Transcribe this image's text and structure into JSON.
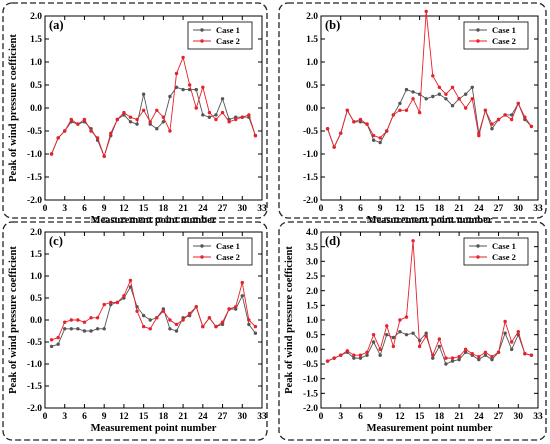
{
  "chart_data": [
    {
      "type": "line",
      "panel_label": "(a)",
      "xlabel": "Measurement point number",
      "ylabel": "Peak of wind pressure coefficient",
      "xlim": [
        0,
        33
      ],
      "ylim": [
        -2.0,
        2.0
      ],
      "xticks": [
        0,
        3,
        6,
        9,
        12,
        15,
        18,
        21,
        24,
        27,
        30,
        33
      ],
      "yticks": [
        -2.0,
        -1.5,
        -1.0,
        -0.5,
        0.0,
        0.5,
        1.0,
        1.5,
        2.0
      ],
      "legend": "top-right",
      "x": [
        1,
        2,
        3,
        4,
        5,
        6,
        7,
        8,
        9,
        10,
        11,
        12,
        13,
        14,
        15,
        16,
        17,
        18,
        19,
        20,
        21,
        22,
        23,
        24,
        25,
        26,
        27,
        28,
        29,
        30,
        31,
        32
      ],
      "series": [
        {
          "name": "Case 1",
          "color": "#555555",
          "values": [
            -1.0,
            -0.65,
            -0.5,
            -0.3,
            -0.35,
            -0.3,
            -0.45,
            -0.7,
            -1.05,
            -0.6,
            -0.25,
            -0.15,
            -0.3,
            -0.35,
            0.3,
            -0.35,
            -0.45,
            -0.3,
            0.25,
            0.45,
            0.4,
            0.4,
            0.4,
            -0.15,
            -0.2,
            -0.15,
            0.2,
            -0.25,
            -0.2,
            -0.2,
            -0.2,
            -0.6
          ]
        },
        {
          "name": "Case 2",
          "color": "#e8212b",
          "values": [
            -1.0,
            -0.65,
            -0.5,
            -0.25,
            -0.35,
            -0.25,
            -0.5,
            -0.65,
            -1.05,
            -0.55,
            -0.25,
            -0.1,
            -0.2,
            -0.25,
            -0.05,
            -0.3,
            -0.05,
            -0.2,
            -0.5,
            0.75,
            1.1,
            0.5,
            0.0,
            0.45,
            -0.1,
            -0.25,
            -0.1,
            -0.3,
            -0.25,
            -0.2,
            -0.15,
            -0.6
          ]
        }
      ]
    },
    {
      "type": "line",
      "panel_label": "(b)",
      "xlabel": "Measurement point number",
      "ylabel": "",
      "xlim": [
        0,
        33
      ],
      "ylim": [
        -2.0,
        2.0
      ],
      "xticks": [
        0,
        3,
        6,
        9,
        12,
        15,
        18,
        21,
        24,
        27,
        30,
        33
      ],
      "yticks": [
        -2.0,
        -1.5,
        -1.0,
        -0.5,
        0.0,
        0.5,
        1.0,
        1.5,
        2.0
      ],
      "legend": "top-right",
      "x": [
        1,
        2,
        3,
        4,
        5,
        6,
        7,
        8,
        9,
        10,
        11,
        12,
        13,
        14,
        15,
        16,
        17,
        18,
        19,
        20,
        21,
        22,
        23,
        24,
        25,
        26,
        27,
        28,
        29,
        30,
        31,
        32
      ],
      "series": [
        {
          "name": "Case 1",
          "color": "#555555",
          "values": [
            -0.45,
            -0.85,
            -0.55,
            -0.05,
            -0.3,
            -0.3,
            -0.35,
            -0.7,
            -0.75,
            -0.5,
            -0.15,
            0.1,
            0.4,
            0.35,
            0.3,
            0.2,
            0.25,
            0.3,
            0.2,
            0.05,
            0.2,
            0.3,
            0.45,
            -0.55,
            -0.05,
            -0.45,
            -0.25,
            -0.15,
            -0.15,
            0.1,
            -0.25,
            -0.4
          ]
        },
        {
          "name": "Case 2",
          "color": "#e8212b",
          "values": [
            -0.45,
            -0.85,
            -0.55,
            -0.05,
            -0.3,
            -0.25,
            -0.35,
            -0.6,
            -0.65,
            -0.5,
            -0.15,
            -0.05,
            -0.05,
            0.2,
            -0.1,
            2.1,
            0.7,
            0.45,
            0.3,
            0.45,
            0.2,
            0.0,
            0.2,
            -0.6,
            -0.05,
            -0.35,
            -0.25,
            -0.15,
            -0.25,
            0.1,
            -0.2,
            -0.4
          ]
        }
      ]
    },
    {
      "type": "line",
      "panel_label": "(c)",
      "xlabel": "Measurement point number",
      "ylabel": "Peak of wind pressure coefficient",
      "xlim": [
        0,
        33
      ],
      "ylim": [
        -2.0,
        2.0
      ],
      "xticks": [
        0,
        3,
        6,
        9,
        12,
        15,
        18,
        21,
        24,
        27,
        30,
        33
      ],
      "yticks": [
        -2.0,
        -1.5,
        -1.0,
        -0.5,
        0.0,
        0.5,
        1.0,
        1.5,
        2.0
      ],
      "legend": "top-right",
      "x": [
        1,
        2,
        3,
        4,
        5,
        6,
        7,
        8,
        9,
        10,
        11,
        12,
        13,
        14,
        15,
        16,
        17,
        18,
        19,
        20,
        21,
        22,
        23,
        24,
        25,
        26,
        27,
        28,
        29,
        30,
        31,
        32
      ],
      "series": [
        {
          "name": "Case 1",
          "color": "#555555",
          "values": [
            -0.6,
            -0.55,
            -0.2,
            -0.2,
            -0.2,
            -0.25,
            -0.25,
            -0.2,
            -0.2,
            0.35,
            0.4,
            0.5,
            0.75,
            0.3,
            0.1,
            0.0,
            0.05,
            0.25,
            -0.2,
            -0.25,
            0.05,
            0.1,
            0.3,
            -0.15,
            0.05,
            -0.15,
            -0.1,
            0.25,
            0.25,
            0.55,
            -0.1,
            -0.3
          ]
        },
        {
          "name": "Case 2",
          "color": "#e8212b",
          "values": [
            -0.45,
            -0.4,
            -0.05,
            0.0,
            0.0,
            -0.05,
            0.05,
            0.05,
            0.35,
            0.4,
            0.4,
            0.55,
            0.9,
            0.2,
            -0.15,
            -0.2,
            0.05,
            0.2,
            0.0,
            -0.1,
            0.0,
            0.15,
            0.3,
            -0.15,
            0.05,
            -0.15,
            -0.05,
            0.25,
            0.3,
            0.85,
            0.0,
            -0.15
          ]
        }
      ]
    },
    {
      "type": "line",
      "panel_label": "(d)",
      "xlabel": "Measurement point number",
      "ylabel": "Peak of wind pressure coefficient",
      "xlim": [
        0,
        33
      ],
      "ylim": [
        -2.0,
        4.0
      ],
      "xticks": [
        0,
        3,
        6,
        9,
        12,
        15,
        18,
        21,
        24,
        27,
        30,
        33
      ],
      "yticks": [
        -2.0,
        -1.5,
        -1.0,
        -0.5,
        0.0,
        0.5,
        1.0,
        1.5,
        2.0,
        2.5,
        3.0,
        3.5,
        4.0
      ],
      "legend": "top-right",
      "x": [
        1,
        2,
        3,
        4,
        5,
        6,
        7,
        8,
        9,
        10,
        11,
        12,
        13,
        14,
        15,
        16,
        17,
        18,
        19,
        20,
        21,
        22,
        23,
        24,
        25,
        26,
        27,
        28,
        29,
        30,
        31,
        32
      ],
      "series": [
        {
          "name": "Case 1",
          "color": "#555555",
          "values": [
            -0.4,
            -0.3,
            -0.2,
            -0.1,
            -0.3,
            -0.3,
            -0.2,
            0.25,
            -0.2,
            0.5,
            0.4,
            0.6,
            0.5,
            0.55,
            0.3,
            0.55,
            -0.3,
            0.1,
            -0.5,
            -0.4,
            -0.35,
            -0.1,
            -0.2,
            -0.35,
            -0.2,
            -0.35,
            -0.1,
            0.55,
            0.0,
            0.5,
            -0.15,
            -0.2
          ]
        },
        {
          "name": "Case 2",
          "color": "#e8212b",
          "values": [
            -0.4,
            -0.3,
            -0.2,
            -0.05,
            -0.2,
            -0.2,
            -0.1,
            0.5,
            0.0,
            0.8,
            0.1,
            1.0,
            1.1,
            3.7,
            0.1,
            0.45,
            -0.2,
            0.35,
            -0.3,
            -0.3,
            -0.25,
            0.0,
            -0.15,
            -0.25,
            -0.1,
            -0.25,
            -0.1,
            0.95,
            0.25,
            0.6,
            -0.15,
            -0.2
          ]
        }
      ]
    }
  ]
}
